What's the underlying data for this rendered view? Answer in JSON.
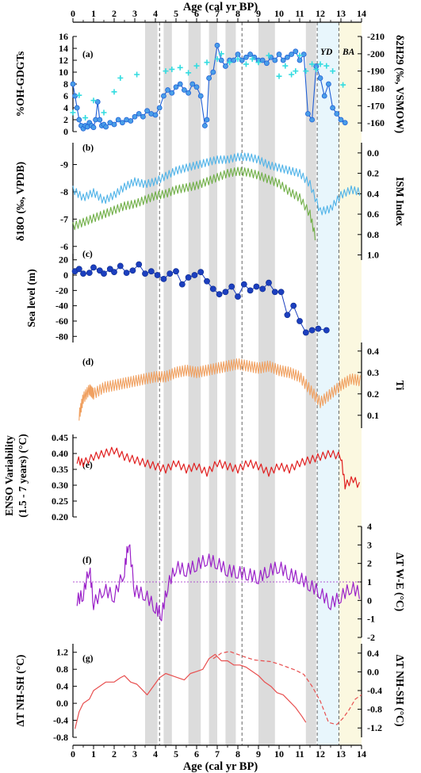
{
  "figure": {
    "top_axis_title": "Age (cal yr BP)",
    "bottom_axis_title": "Age (cal yr BP)",
    "age_ticks": [
      "0",
      "1",
      "2",
      "3",
      "4",
      "5",
      "6",
      "7",
      "8",
      "9",
      "10",
      "11",
      "12",
      "13",
      "14"
    ],
    "interval_labels": {
      "yd": "YD",
      "ba": "BA"
    }
  },
  "chart_data": [
    {
      "panel": "(a)",
      "type": "line",
      "ylabel_left": "%OH-GDGTs",
      "ylabel_right": "δ2H29 (‰, VSMOW)",
      "ylim_left": [
        0,
        16
      ],
      "yticks_left": [
        "0",
        "2",
        "4",
        "6",
        "8",
        "10",
        "12",
        "14",
        "16"
      ],
      "ylim_right": [
        -155,
        -210
      ],
      "yticks_right": [
        "-160",
        "-170",
        "-180",
        "-190",
        "-200",
        "-210"
      ],
      "colors": {
        "oh_gdgt": "#1f5fd6",
        "oh_gdgt_fill": "#4a9ee8",
        "d2h": "#33dce0"
      },
      "series": [
        {
          "name": "%OH-GDGTs",
          "axis": "left",
          "x": [
            0.0,
            0.1,
            0.2,
            0.3,
            0.4,
            0.5,
            0.6,
            0.7,
            0.8,
            0.9,
            1.0,
            1.1,
            1.2,
            1.3,
            1.4,
            1.5,
            1.6,
            1.8,
            2.0,
            2.2,
            2.4,
            2.6,
            2.8,
            3.0,
            3.2,
            3.4,
            3.6,
            3.8,
            4.0,
            4.2,
            4.4,
            4.6,
            4.8,
            5.0,
            5.2,
            5.4,
            5.6,
            5.8,
            6.0,
            6.2,
            6.4,
            6.5,
            6.6,
            6.8,
            7.0,
            7.2,
            7.4,
            7.6,
            7.8,
            8.0,
            8.2,
            8.4,
            8.6,
            8.8,
            9.0,
            9.2,
            9.4,
            9.6,
            9.8,
            10.0,
            10.2,
            10.4,
            10.6,
            10.8,
            11.0,
            11.2,
            11.4,
            11.6,
            11.8,
            12.0,
            12.2,
            12.4,
            12.6,
            12.8,
            13.0,
            13.2
          ],
          "y": [
            8,
            6,
            4,
            2,
            1,
            0.5,
            1,
            0.8,
            1.5,
            1,
            0.7,
            2,
            5,
            2,
            1,
            1.2,
            0.8,
            1.5,
            1.2,
            2,
            1.5,
            2,
            1.8,
            2.5,
            3,
            2.5,
            3.5,
            3,
            2.8,
            4,
            6,
            7,
            6.5,
            7.5,
            8,
            7,
            6.5,
            8,
            7.5,
            6,
            1,
            2,
            9,
            10,
            14.5,
            12,
            11,
            12,
            12,
            13,
            12,
            12.5,
            13,
            12.5,
            12,
            12,
            11.5,
            12.5,
            12,
            13,
            12,
            12.5,
            13,
            13.5,
            12,
            13,
            3,
            2,
            11,
            9,
            6,
            8,
            4,
            3,
            2,
            1.5
          ]
        },
        {
          "name": "δ2H29",
          "axis": "right",
          "x": [
            0.0,
            0.3,
            0.6,
            1.0,
            1.5,
            2.0,
            2.3,
            3.1,
            4.5,
            4.8,
            5.2,
            5.6,
            6.0,
            6.5,
            7.0,
            7.2,
            7.6,
            8.0,
            8.4,
            8.7,
            9.0,
            9.5,
            10.0,
            10.3,
            10.6,
            10.8,
            11.0,
            11.3,
            11.6,
            11.8,
            12.0,
            12.3,
            12.6,
            13.1
          ],
          "y": [
            -166,
            -176,
            -163,
            -173,
            -166,
            -178,
            -186,
            -188,
            -190,
            -191,
            -192,
            -189,
            -193,
            -195,
            -197,
            -200,
            -195,
            -197,
            -194,
            -197,
            -195,
            -199,
            -187,
            -193,
            -188,
            -190,
            -199,
            -190,
            -194,
            -191,
            -194,
            -193,
            -190,
            -182
          ]
        }
      ]
    },
    {
      "panel": "(b)",
      "type": "line",
      "ylabel_left": "δ18O (‰, VPDB)",
      "ylabel_right": "ISM Index",
      "ylim_left": [
        -5.5,
        -9.8
      ],
      "yticks_left": [
        "-6",
        "-7",
        "-8",
        "-9"
      ],
      "ylim_right": [
        1.05,
        -0.1
      ],
      "yticks_right": [
        "0.0",
        "0.2",
        "0.4",
        "0.6",
        "0.8",
        "1.0"
      ],
      "colors": {
        "d18o": "#4fb3e8",
        "ism": "#6fae45"
      },
      "series": [
        {
          "name": "δ18O",
          "axis": "left",
          "x": [
            0.0,
            0.5,
            1.0,
            1.5,
            2.0,
            2.5,
            3.0,
            3.5,
            4.0,
            4.5,
            5.0,
            5.5,
            6.0,
            6.5,
            7.0,
            7.5,
            8.0,
            8.5,
            9.0,
            9.5,
            10.0,
            10.5,
            11.0,
            11.5,
            12.0,
            12.5,
            13.0,
            13.5,
            14.0
          ],
          "y": [
            -8.1,
            -7.8,
            -8.0,
            -7.7,
            -7.9,
            -8.2,
            -8.4,
            -8.3,
            -8.4,
            -8.6,
            -8.8,
            -8.9,
            -9.0,
            -9.1,
            -9.2,
            -9.2,
            -9.3,
            -9.3,
            -9.2,
            -9.0,
            -8.9,
            -8.8,
            -8.7,
            -8.3,
            -7.3,
            -7.4,
            -7.9,
            -8.1,
            -8.0
          ]
        },
        {
          "name": "ISM Index",
          "axis": "right",
          "x": [
            0.0,
            0.5,
            1.0,
            1.5,
            2.0,
            2.5,
            3.0,
            3.5,
            4.0,
            4.5,
            5.0,
            5.5,
            6.0,
            6.5,
            7.0,
            7.5,
            8.0,
            8.5,
            9.0,
            9.5,
            10.0,
            10.5,
            11.0,
            11.5,
            11.8
          ],
          "y": [
            0.72,
            0.68,
            0.64,
            0.6,
            0.56,
            0.52,
            0.5,
            0.46,
            0.42,
            0.4,
            0.36,
            0.34,
            0.32,
            0.28,
            0.24,
            0.2,
            0.18,
            0.19,
            0.22,
            0.26,
            0.3,
            0.38,
            0.44,
            0.6,
            0.86
          ]
        }
      ]
    },
    {
      "panel": "(c)",
      "type": "line",
      "ylabel_left": "Sea level (m)",
      "ylim_left": [
        -88,
        28
      ],
      "yticks_left": [
        "20",
        "0",
        "-20",
        "-40",
        "-60",
        "-80"
      ],
      "colors": {
        "sea": "#1c3fbf"
      },
      "series": [
        {
          "name": "Sea level",
          "x": [
            0.1,
            0.3,
            0.5,
            0.8,
            1.0,
            1.3,
            1.5,
            1.8,
            2.0,
            2.3,
            2.6,
            2.9,
            3.2,
            3.5,
            3.8,
            4.1,
            4.4,
            4.7,
            5.0,
            5.3,
            5.6,
            5.9,
            6.2,
            6.5,
            6.8,
            7.1,
            7.4,
            7.7,
            8.0,
            8.3,
            8.6,
            8.9,
            9.2,
            9.5,
            9.8,
            10.1,
            10.4,
            10.7,
            11.0,
            11.3,
            11.6,
            11.9,
            12.3
          ],
          "y": [
            5,
            8,
            2,
            3,
            10,
            6,
            2,
            8,
            4,
            12,
            3,
            6,
            14,
            2,
            5,
            0,
            -5,
            2,
            5,
            -12,
            -3,
            0,
            4,
            -8,
            -18,
            -25,
            -22,
            -15,
            -28,
            -12,
            -20,
            -15,
            -18,
            -10,
            -22,
            -22,
            -52,
            -40,
            -60,
            -75,
            -72,
            -70,
            -72
          ]
        }
      ]
    },
    {
      "panel": "(d)",
      "type": "line",
      "ylabel_right": "Ti",
      "ylim_right": [
        0.04,
        0.44
      ],
      "yticks_right": [
        "0.1",
        "0.2",
        "0.3",
        "0.4"
      ],
      "colors": {
        "ti": "#f0a060"
      },
      "series": [
        {
          "name": "Ti",
          "x": [
            0.3,
            0.5,
            0.8,
            1.0,
            1.5,
            2.0,
            2.5,
            3.0,
            3.5,
            4.0,
            4.5,
            5.0,
            5.5,
            6.0,
            6.5,
            7.0,
            7.5,
            8.0,
            8.5,
            9.0,
            9.5,
            10.0,
            10.5,
            11.0,
            11.5,
            12.0,
            12.5,
            13.0,
            13.5,
            14.0
          ],
          "y": [
            0.1,
            0.18,
            0.22,
            0.2,
            0.23,
            0.24,
            0.25,
            0.26,
            0.27,
            0.28,
            0.28,
            0.3,
            0.31,
            0.3,
            0.31,
            0.32,
            0.33,
            0.34,
            0.33,
            0.32,
            0.33,
            0.31,
            0.3,
            0.28,
            0.22,
            0.16,
            0.2,
            0.24,
            0.27,
            0.26
          ]
        }
      ]
    },
    {
      "panel": "(e)",
      "type": "line",
      "ylabel_left": "ENSO Variability (1.5 - 7 years) (°C)",
      "ylim_left": [
        0.2,
        0.46
      ],
      "yticks_left": [
        "0.20",
        "0.25",
        "0.30",
        "0.35",
        "0.40",
        "0.45"
      ],
      "colors": {
        "enso": "#e02020"
      },
      "series": [
        {
          "name": "ENSO variability",
          "x": [
            0.2,
            0.5,
            1.0,
            1.5,
            2.0,
            2.5,
            3.0,
            3.5,
            4.0,
            4.5,
            5.0,
            5.5,
            6.0,
            6.5,
            7.0,
            7.5,
            8.0,
            8.5,
            9.0,
            9.5,
            10.0,
            10.5,
            11.0,
            11.5,
            12.0,
            12.5,
            13.0,
            13.2,
            13.6,
            14.0
          ],
          "y": [
            0.38,
            0.37,
            0.39,
            0.4,
            0.41,
            0.39,
            0.38,
            0.37,
            0.36,
            0.35,
            0.37,
            0.35,
            0.36,
            0.34,
            0.37,
            0.36,
            0.35,
            0.37,
            0.36,
            0.34,
            0.36,
            0.35,
            0.37,
            0.38,
            0.39,
            0.4,
            0.39,
            0.3,
            0.32,
            0.29
          ]
        }
      ]
    },
    {
      "panel": "(f)",
      "type": "line",
      "ylabel_right": "ΔT W-E (°C)",
      "ylim_right": [
        -2,
        4
      ],
      "yticks_right": [
        "-2",
        "-1",
        "0",
        "1",
        "2",
        "3",
        "4"
      ],
      "reference_line": 1.0,
      "colors": {
        "dt": "#9a20c8"
      },
      "series": [
        {
          "name": "ΔT W-E",
          "x": [
            0.2,
            0.5,
            0.8,
            1.0,
            1.5,
            2.0,
            2.5,
            2.7,
            3.0,
            3.5,
            4.0,
            4.3,
            4.6,
            5.0,
            5.5,
            6.0,
            6.5,
            7.0,
            7.5,
            8.0,
            8.5,
            9.0,
            9.5,
            10.0,
            10.5,
            11.0,
            11.5,
            12.0,
            12.5,
            13.0,
            13.5,
            14.0
          ],
          "y": [
            0.0,
            0.3,
            1.8,
            -0.2,
            0.6,
            0.2,
            1.6,
            3.2,
            0.5,
            0.3,
            -0.4,
            -0.8,
            0.8,
            1.8,
            1.6,
            1.9,
            2.2,
            2.0,
            1.6,
            1.5,
            1.4,
            1.2,
            1.6,
            1.8,
            1.4,
            1.2,
            0.8,
            0.4,
            -0.2,
            0.2,
            0.7,
            0.3
          ]
        }
      ]
    },
    {
      "panel": "(g)",
      "type": "line",
      "ylabel_left": "ΔT NH-SH (°C)",
      "ylabel_right": "ΔT NH-SH (°C)",
      "ylim_left": [
        -0.8,
        1.4
      ],
      "yticks_left": [
        "-0.8",
        "-0.4",
        "0.0",
        "0.4",
        "0.8",
        "1.2"
      ],
      "yticks_right": [
        "-1.2",
        "-0.8",
        "-0.4",
        "0.0",
        "0.4"
      ],
      "colors": {
        "dt": "#e85050"
      },
      "series": [
        {
          "name": "ΔT NH-SH",
          "style": "solid",
          "x": [
            0.1,
            0.3,
            0.5,
            0.8,
            1.0,
            1.3,
            1.6,
            2.0,
            2.3,
            2.5,
            2.8,
            3.1,
            3.3,
            3.6,
            3.9,
            4.2,
            4.5,
            4.8,
            5.1,
            5.4,
            5.7,
            6.0,
            6.3,
            6.6,
            6.9,
            7.2,
            7.5,
            7.8,
            8.1,
            8.4,
            8.7,
            9.0,
            9.3,
            9.6,
            9.9,
            10.2,
            10.5,
            10.8,
            11.1,
            11.3
          ],
          "y": [
            -0.6,
            -0.2,
            0.0,
            0.1,
            0.3,
            0.4,
            0.5,
            0.5,
            0.6,
            0.65,
            0.5,
            0.45,
            0.35,
            0.2,
            0.4,
            0.6,
            0.7,
            0.65,
            0.6,
            0.55,
            0.7,
            0.75,
            0.8,
            1.05,
            1.15,
            1.0,
            1.0,
            0.9,
            0.9,
            0.85,
            0.75,
            0.65,
            0.5,
            0.4,
            0.25,
            0.2,
            0.05,
            -0.1,
            -0.3,
            -0.45
          ]
        },
        {
          "name": "ΔT NH-SH (dashed)",
          "style": "dashed",
          "x": [
            6.8,
            7.2,
            7.6,
            8.0,
            8.4,
            8.8,
            9.2,
            9.6,
            10.0,
            10.4,
            10.8,
            11.2,
            11.6,
            12.0,
            12.4,
            12.8,
            13.1,
            13.4,
            13.7,
            14.0
          ],
          "y": [
            1.05,
            1.18,
            1.22,
            1.15,
            1.08,
            1.02,
            1.0,
            0.98,
            0.92,
            0.85,
            0.78,
            0.68,
            0.4,
            0.05,
            -0.45,
            -0.5,
            -0.35,
            -0.15,
            0.1,
            0.2
          ]
        }
      ]
    }
  ]
}
